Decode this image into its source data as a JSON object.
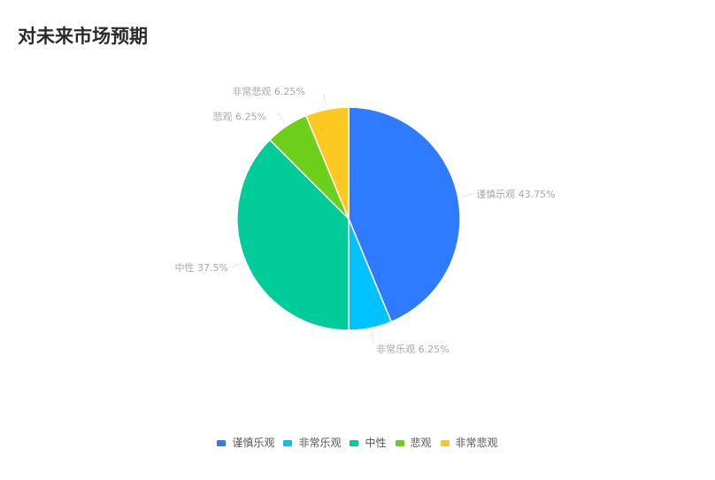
{
  "title": "对未来市场预期",
  "chart_data": {
    "type": "pie",
    "title": "对未来市场预期",
    "categories": [
      "谨慎乐观",
      "非常乐观",
      "中性",
      "悲观",
      "非常悲观"
    ],
    "values": [
      43.75,
      6.25,
      37.5,
      6.25,
      6.25
    ],
    "labels": [
      "谨慎乐观 43.75%",
      "非常乐观 6.25%",
      "中性 37.5%",
      "悲观 6.25%",
      "非常悲观 6.25%"
    ],
    "colors": [
      "#2f7bff",
      "#00c2ff",
      "#00cc99",
      "#6ccf19",
      "#fcc920"
    ],
    "legend_position": "bottom"
  }
}
